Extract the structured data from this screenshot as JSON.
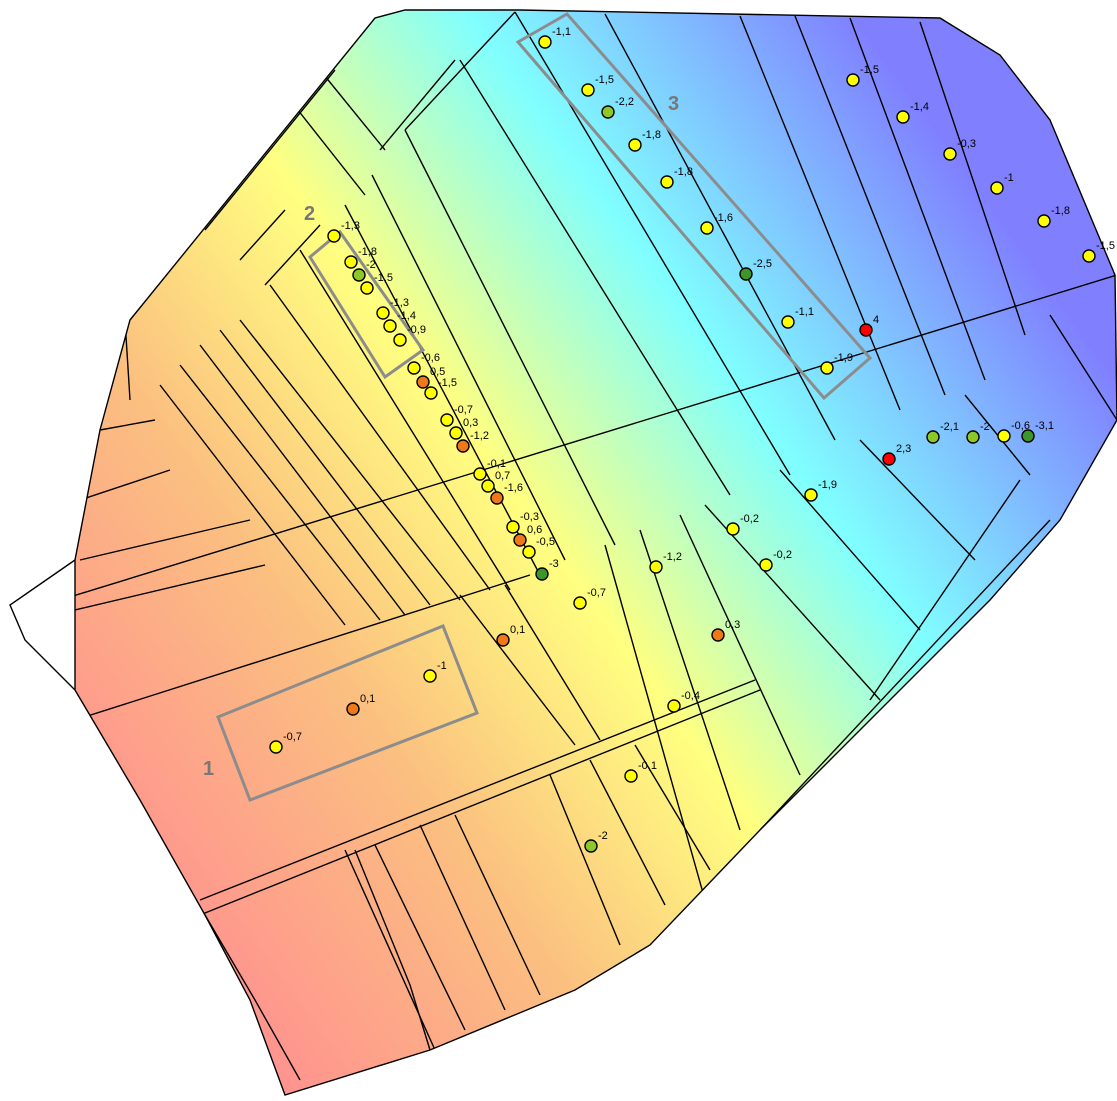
{
  "colors": {
    "marker_yellow": "#ffff00",
    "marker_orange": "#f07818",
    "marker_green": "#8cc828",
    "marker_darkgreen": "#3c9628",
    "marker_red": "#ff0000",
    "field_outline": "#000000",
    "zone_frame": "#8c8c8c",
    "gradient_warm": "#ff9090",
    "gradient_mid": "#ffff80",
    "gradient_cool": "#80ffff",
    "gradient_cold": "#8080ff"
  },
  "zones": [
    {
      "id": "zone-1",
      "label": "1"
    },
    {
      "id": "zone-2",
      "label": "2"
    },
    {
      "id": "zone-3",
      "label": "3"
    }
  ],
  "points": [
    {
      "label": "-1,1",
      "color": "yellow"
    },
    {
      "label": "-1,5",
      "color": "yellow"
    },
    {
      "label": "-2,2",
      "color": "green"
    },
    {
      "label": "-1,8",
      "color": "yellow"
    },
    {
      "label": "-1,8",
      "color": "yellow"
    },
    {
      "label": "-1,6",
      "color": "yellow"
    },
    {
      "label": "-2,5",
      "color": "darkgreen"
    },
    {
      "label": "-1,1",
      "color": "yellow"
    },
    {
      "label": "-1,9",
      "color": "yellow"
    },
    {
      "label": "-1,5",
      "color": "yellow"
    },
    {
      "label": "-1,4",
      "color": "yellow"
    },
    {
      "label": "-0,3",
      "color": "yellow"
    },
    {
      "label": "-1",
      "color": "yellow"
    },
    {
      "label": "-1,8",
      "color": "yellow"
    },
    {
      "label": "-1,5",
      "color": "yellow"
    },
    {
      "label": "-1,3",
      "color": "yellow"
    },
    {
      "label": "-1,8",
      "color": "yellow"
    },
    {
      "label": "-2",
      "color": "green"
    },
    {
      "label": "-1,5",
      "color": "yellow"
    },
    {
      "label": "-1,3",
      "color": "yellow"
    },
    {
      "label": "-1,4",
      "color": "yellow"
    },
    {
      "label": "-0,9",
      "color": "yellow"
    },
    {
      "label": "-0,6",
      "color": "yellow"
    },
    {
      "label": "0,5",
      "color": "orange"
    },
    {
      "label": "-1,5",
      "color": "yellow"
    },
    {
      "label": "-0,7",
      "color": "yellow"
    },
    {
      "label": "0,3",
      "color": "yellow"
    },
    {
      "label": "-1,2",
      "color": "orange"
    },
    {
      "label": "-0,1",
      "color": "yellow"
    },
    {
      "label": "0,7",
      "color": "yellow"
    },
    {
      "label": "-1,6",
      "color": "orange"
    },
    {
      "label": "-0,3",
      "color": "yellow"
    },
    {
      "label": "0,6",
      "color": "orange"
    },
    {
      "label": "-0,5",
      "color": "yellow"
    },
    {
      "label": "-3",
      "color": "darkgreen"
    },
    {
      "label": "4",
      "color": "red"
    },
    {
      "label": "2,3",
      "color": "red"
    },
    {
      "label": "-2,1",
      "color": "green"
    },
    {
      "label": "-2",
      "color": "green"
    },
    {
      "label": "-0,6",
      "color": "yellow"
    },
    {
      "label": "-3,1",
      "color": "darkgreen"
    },
    {
      "label": "-1,9",
      "color": "yellow"
    },
    {
      "label": "-0,2",
      "color": "yellow"
    },
    {
      "label": "-0,2",
      "color": "yellow"
    },
    {
      "label": "-1,2",
      "color": "yellow"
    },
    {
      "label": "-0,7",
      "color": "yellow"
    },
    {
      "label": "0,1",
      "color": "orange"
    },
    {
      "label": "0,3",
      "color": "orange"
    },
    {
      "label": "-0,4",
      "color": "yellow"
    },
    {
      "label": "-0,1",
      "color": "yellow"
    },
    {
      "label": "-2",
      "color": "green"
    },
    {
      "label": "-1",
      "color": "yellow"
    },
    {
      "label": "0,1",
      "color": "orange"
    },
    {
      "label": "-0,7",
      "color": "yellow"
    }
  ]
}
